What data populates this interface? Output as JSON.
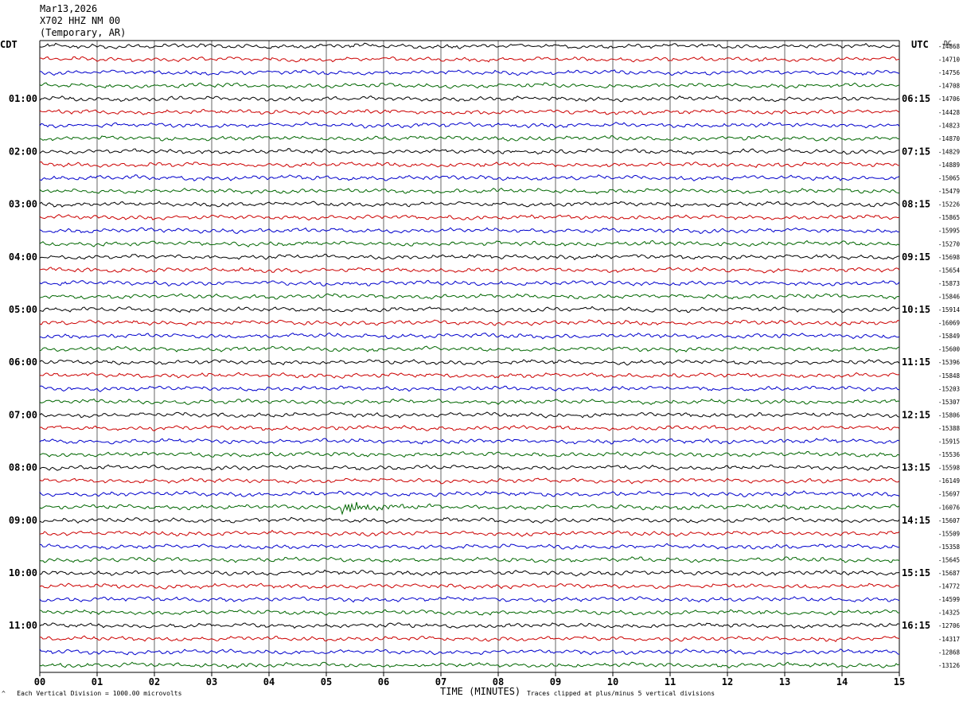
{
  "header": {
    "date": "Mar13,2026",
    "station": "X702 HHZ NM 00",
    "network": "(Temporary, AR)"
  },
  "labels": {
    "left_zone": "CDT",
    "right_zone": "UTC",
    "right_dc": "DC",
    "xlabel": "TIME (MINUTES)",
    "footer_left": "Each Vertical Division = 1000.00 microvolts",
    "footer_right": "Traces clipped at plus/minus 5 vertical divisions"
  },
  "colors": {
    "trace_cycle": [
      "#000000",
      "#cc0000",
      "#0000cc",
      "#006600"
    ],
    "grid": "#000000"
  },
  "chart_data": {
    "type": "line",
    "xlim": [
      0,
      15
    ],
    "x_ticks": [
      "00",
      "01",
      "02",
      "03",
      "04",
      "05",
      "06",
      "07",
      "08",
      "09",
      "10",
      "11",
      "12",
      "13",
      "14",
      "15"
    ],
    "rows": 48,
    "minutes_per_row": 15,
    "left_time_labels": [
      "01:00",
      "02:00",
      "03:00",
      "04:00",
      "05:00",
      "06:00",
      "07:00",
      "08:00",
      "09:00",
      "10:00",
      "11:00"
    ],
    "right_time_labels": [
      "06:15",
      "07:15",
      "08:15",
      "09:15",
      "10:15",
      "11:15",
      "12:15",
      "13:15",
      "14:15",
      "15:15",
      "16:15"
    ],
    "dc_offsets": [
      "-14868",
      "-14710",
      "-14756",
      "-14708",
      "-14706",
      "-14428",
      "-14823",
      "-14870",
      "-14829",
      "-14889",
      "-15065",
      "-15479",
      "-15226",
      "-15865",
      "-15995",
      "-15270",
      "-15698",
      "-15654",
      "-15873",
      "-15846",
      "-15914",
      "-16069",
      "-15849",
      "-15600",
      "-15396",
      "-15848",
      "-15203",
      "-15307",
      "-15806",
      "-15388",
      "-15915",
      "-15536",
      "-15598",
      "-16149",
      "-15697",
      "-16076",
      "-15607",
      "-15509",
      "-15358",
      "-15645",
      "-15687",
      "-14772",
      "-14599",
      "-14325",
      "-12706",
      "-14317",
      "-12868",
      "-13126"
    ],
    "events": [
      {
        "row": 35,
        "minute": 5.27,
        "label": ""
      }
    ]
  }
}
